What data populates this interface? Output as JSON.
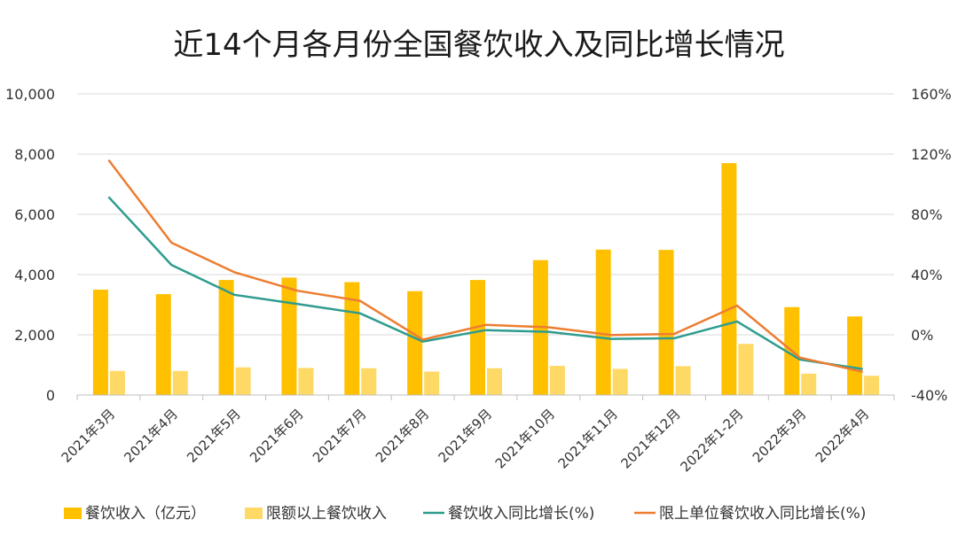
{
  "chart_data": {
    "type": "bar",
    "title": "近14个月各月份全国餐饮收入及同比增长情况",
    "categories": [
      "2021年3月",
      "2021年4月",
      "2021年5月",
      "2021年6月",
      "2021年7月",
      "2021年8月",
      "2021年9月",
      "2021年10月",
      "2021年11月",
      "2021年12月",
      "2022年1-2月",
      "2022年3月",
      "2022年4月"
    ],
    "series": [
      {
        "name": "餐饮收入（亿元）",
        "type": "bar",
        "axis": "left",
        "color": "#FFC000",
        "values": [
          3500,
          3350,
          3820,
          3900,
          3750,
          3450,
          3820,
          4480,
          4830,
          4820,
          7700,
          2920,
          2610
        ]
      },
      {
        "name": "限额以上餐饮收入",
        "type": "bar",
        "axis": "left",
        "color": "#FFD966",
        "values": [
          800,
          800,
          920,
          900,
          890,
          780,
          890,
          970,
          870,
          960,
          1700,
          710,
          640
        ]
      },
      {
        "name": "餐饮收入同比增长(%)",
        "type": "line",
        "axis": "right",
        "color": "#2E9C8E",
        "values": [
          91.6,
          46.4,
          26.6,
          20.5,
          14.3,
          -4.5,
          3.1,
          2.0,
          -2.7,
          -2.3,
          8.9,
          -16.4,
          -22.7
        ]
      },
      {
        "name": "限上单位餐饮收入同比增长(%)",
        "type": "line",
        "axis": "right",
        "color": "#ED7D31",
        "values": [
          116.1,
          61.2,
          41.6,
          29.3,
          22.6,
          -3.2,
          6.6,
          5.0,
          -0.1,
          0.6,
          19.4,
          -15.1,
          -24.6
        ]
      }
    ],
    "y_left": {
      "ylim": [
        0,
        10000
      ],
      "ticks": [
        "0",
        "2,000",
        "4,000",
        "6,000",
        "8,000",
        "10,000"
      ]
    },
    "y_right": {
      "ylim": [
        -40,
        160
      ],
      "ticks": [
        "-40%",
        "0%",
        "40%",
        "80%",
        "120%",
        "160%"
      ]
    },
    "grid": true,
    "legend_position": "bottom"
  }
}
